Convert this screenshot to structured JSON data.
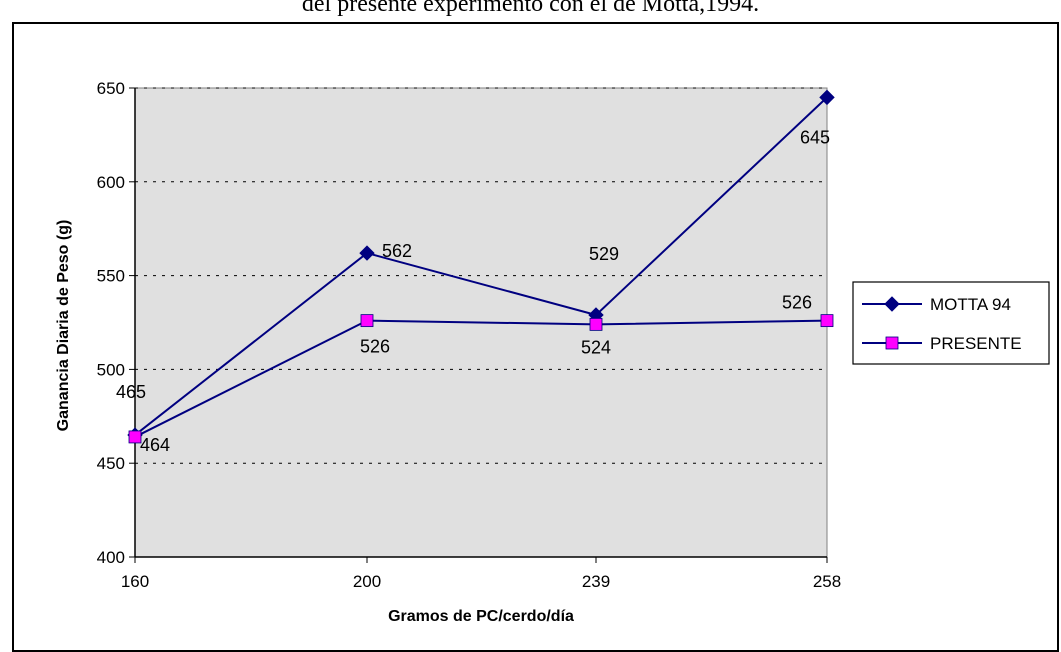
{
  "caption": "del presente experimento con el de Motta,1994.",
  "chart_data": {
    "type": "line",
    "categories": [
      "160",
      "200",
      "239",
      "258"
    ],
    "xlabel": "Gramos de PC/cerdo/día",
    "ylabel": "Ganancia Diaria de Peso (g)",
    "ylim": [
      400,
      650
    ],
    "yticks": [
      400,
      450,
      500,
      550,
      600,
      650
    ],
    "grid": "horizontal dotted",
    "legend_position": "right",
    "series": [
      {
        "name": "MOTTA 94",
        "values": [
          465,
          562,
          529,
          645
        ],
        "color": "#000080",
        "marker": "diamond"
      },
      {
        "name": "PRESENTE",
        "values": [
          464,
          526,
          524,
          526
        ],
        "color": "#FF00FF",
        "marker": "square"
      }
    ],
    "plot_background": "#E0E0E0"
  }
}
